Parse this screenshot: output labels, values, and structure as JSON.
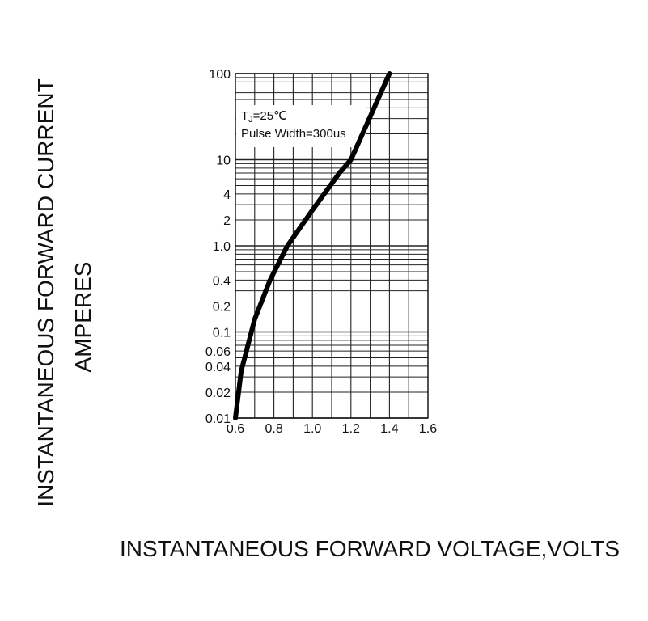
{
  "chart_data": {
    "type": "line",
    "title": "",
    "xlabel": "INSTANTANEOUS FORWARD VOLTAGE,VOLTS",
    "ylabel": "INSTANTANEOUS FORWARD CURRENT",
    "ylabel_units": "AMPERES",
    "xlim": [
      0.6,
      1.6
    ],
    "ylim": [
      0.01,
      100
    ],
    "y_scale": "log",
    "grid": true,
    "x_ticks": [
      0.6,
      0.8,
      1.0,
      1.2,
      1.4,
      1.6
    ],
    "x_tick_labels": [
      "0.6",
      "0.8",
      "1.0",
      "1.2",
      "1.4",
      "1.6"
    ],
    "y_ticks": [
      0.01,
      0.02,
      0.04,
      0.06,
      0.1,
      0.2,
      0.4,
      1.0,
      2,
      4,
      10,
      100
    ],
    "y_tick_labels": [
      "0.01",
      "0.02",
      "0.04",
      "0.06",
      "0.1",
      "0.2",
      "0.4",
      "1.0",
      "2",
      "4",
      "10",
      "100"
    ],
    "annotations": {
      "tj_main": "T",
      "tj_sub": "J",
      "tj_rest": "=25℃",
      "pulse": "Pulse Width=300us"
    },
    "series": [
      {
        "x": [
          0.6,
          0.63,
          0.7,
          0.78,
          0.87,
          1.0,
          1.14,
          1.2,
          1.4
        ],
        "y": [
          0.01,
          0.035,
          0.14,
          0.4,
          1.0,
          2.6,
          7.0,
          10.0,
          100.0
        ]
      }
    ]
  }
}
